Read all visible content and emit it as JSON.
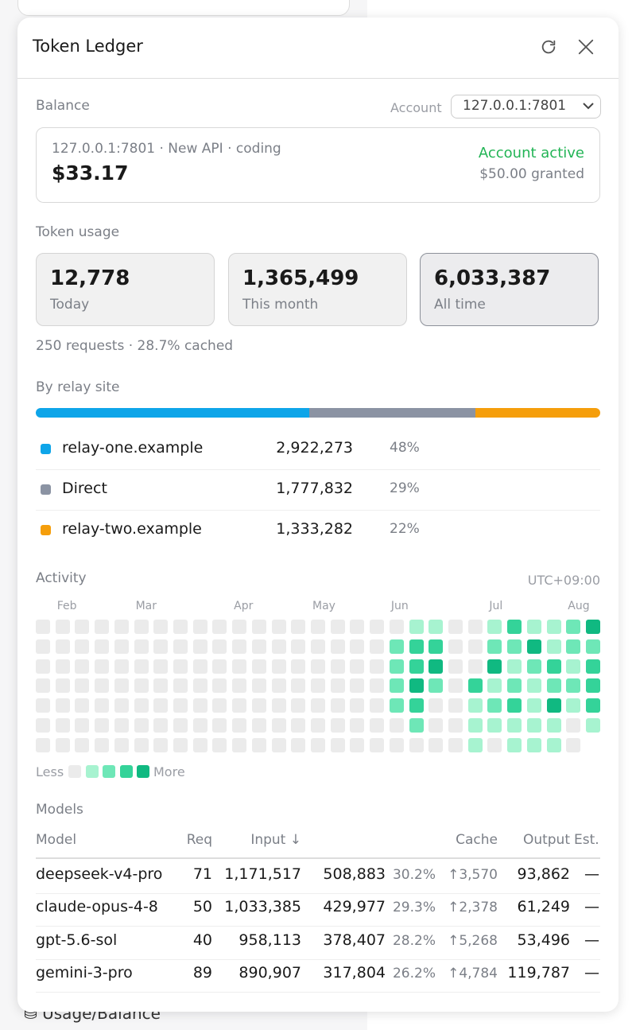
{
  "background": {
    "footer_link": "Usage/Balance"
  },
  "header": {
    "title": "Token Ledger"
  },
  "balance": {
    "label": "Balance",
    "account_label": "Account",
    "account": "127.0.0.1:7801",
    "source": "127.0.0.1:7801 · New API · coding",
    "amount": "$33.17",
    "status": "Account active",
    "granted": "$50.00 granted"
  },
  "usage": {
    "label": "Token usage",
    "cards": [
      {
        "value": "12,778",
        "label": "Today"
      },
      {
        "value": "1,365,499",
        "label": "This month"
      },
      {
        "value": "6,033,387",
        "label": "All time"
      }
    ],
    "summary": "250 requests · 28.7% cached"
  },
  "relay": {
    "label": "By relay site",
    "sites": [
      {
        "name": "relay-one.example",
        "color": "#0ea5e9",
        "tokens": 2922273,
        "tokens_label": "2,922,273",
        "share": "48%"
      },
      {
        "name": "Direct",
        "color": "#8b93a3",
        "tokens": 1777832,
        "tokens_label": "1,777,832",
        "share": "29%"
      },
      {
        "name": "relay-two.example",
        "color": "#f59e0b",
        "tokens": 1333282,
        "tokens_label": "1,333,282",
        "share": "22%"
      }
    ]
  },
  "activity": {
    "label": "Activity",
    "timezone": "UTC+09:00",
    "weeks": [
      {
        "days": [
          0,
          0,
          0,
          0,
          0,
          0,
          0
        ]
      },
      {
        "month": "Feb",
        "days": [
          0,
          0,
          0,
          0,
          0,
          0,
          0
        ]
      },
      {
        "days": [
          0,
          0,
          0,
          0,
          0,
          0,
          0
        ]
      },
      {
        "days": [
          0,
          0,
          0,
          0,
          0,
          0,
          0
        ]
      },
      {
        "days": [
          0,
          0,
          0,
          0,
          0,
          0,
          0
        ]
      },
      {
        "month": "Mar",
        "days": [
          0,
          0,
          0,
          0,
          0,
          0,
          0
        ]
      },
      {
        "days": [
          0,
          0,
          0,
          0,
          0,
          0,
          0
        ]
      },
      {
        "days": [
          0,
          0,
          0,
          0,
          0,
          0,
          0
        ]
      },
      {
        "days": [
          0,
          0,
          0,
          0,
          0,
          0,
          0
        ]
      },
      {
        "days": [
          0,
          0,
          0,
          0,
          0,
          0,
          0
        ]
      },
      {
        "month": "Apr",
        "days": [
          0,
          0,
          0,
          0,
          0,
          0,
          0
        ]
      },
      {
        "days": [
          0,
          0,
          0,
          0,
          0,
          0,
          0
        ]
      },
      {
        "days": [
          0,
          0,
          0,
          0,
          0,
          0,
          0
        ]
      },
      {
        "days": [
          0,
          0,
          0,
          0,
          0,
          0,
          0
        ]
      },
      {
        "month": "May",
        "days": [
          0,
          0,
          0,
          0,
          0,
          0,
          0
        ]
      },
      {
        "days": [
          0,
          0,
          0,
          0,
          0,
          0,
          0
        ]
      },
      {
        "days": [
          0,
          0,
          0,
          0,
          0,
          0,
          0
        ]
      },
      {
        "days": [
          0,
          0,
          0,
          0,
          0,
          0,
          0
        ]
      },
      {
        "month": "Jun",
        "days": [
          0,
          2,
          2,
          2,
          2,
          0,
          0
        ]
      },
      {
        "days": [
          1,
          3,
          3,
          4,
          3,
          2,
          0
        ]
      },
      {
        "days": [
          1,
          3,
          4,
          2,
          0,
          0,
          0
        ]
      },
      {
        "days": [
          0,
          0,
          0,
          0,
          0,
          0,
          0
        ]
      },
      {
        "days": [
          0,
          0,
          0,
          3,
          1,
          1,
          1
        ]
      },
      {
        "month": "Jul",
        "days": [
          1,
          2,
          4,
          1,
          2,
          1,
          0
        ]
      },
      {
        "days": [
          3,
          2,
          1,
          2,
          3,
          1,
          1
        ]
      },
      {
        "days": [
          1,
          4,
          2,
          1,
          1,
          1,
          1
        ]
      },
      {
        "days": [
          1,
          1,
          3,
          2,
          4,
          1,
          1
        ]
      },
      {
        "month": "Aug",
        "days": [
          2,
          2,
          1,
          2,
          1,
          0,
          0
        ]
      },
      {
        "days": [
          4,
          2,
          3,
          3,
          3,
          1,
          null
        ]
      }
    ],
    "legend": {
      "less": "Less",
      "more": "More"
    }
  },
  "models": {
    "label": "Models",
    "headers": {
      "model": "Model",
      "req": "Req",
      "input": "Input ↓",
      "cache": "Cache",
      "output": "Output",
      "est": "Est."
    },
    "rows": [
      {
        "model": "deepseek-v4-pro",
        "req": "71",
        "input": "1,171,517",
        "cache": "508,883",
        "cache_pct": "30.2%",
        "cache_write": "↑3,570",
        "output": "93,862",
        "est": "—"
      },
      {
        "model": "claude-opus-4-8",
        "req": "50",
        "input": "1,033,385",
        "cache": "429,977",
        "cache_pct": "29.3%",
        "cache_write": "↑2,378",
        "output": "61,249",
        "est": "—"
      },
      {
        "model": "gpt-5.6-sol",
        "req": "40",
        "input": "958,113",
        "cache": "378,407",
        "cache_pct": "28.2%",
        "cache_write": "↑5,268",
        "output": "53,496",
        "est": "—"
      },
      {
        "model": "gemini-3-pro",
        "req": "89",
        "input": "890,907",
        "cache": "317,804",
        "cache_pct": "26.2%",
        "cache_write": "↑4,784",
        "output": "119,787",
        "est": "—"
      }
    ]
  }
}
